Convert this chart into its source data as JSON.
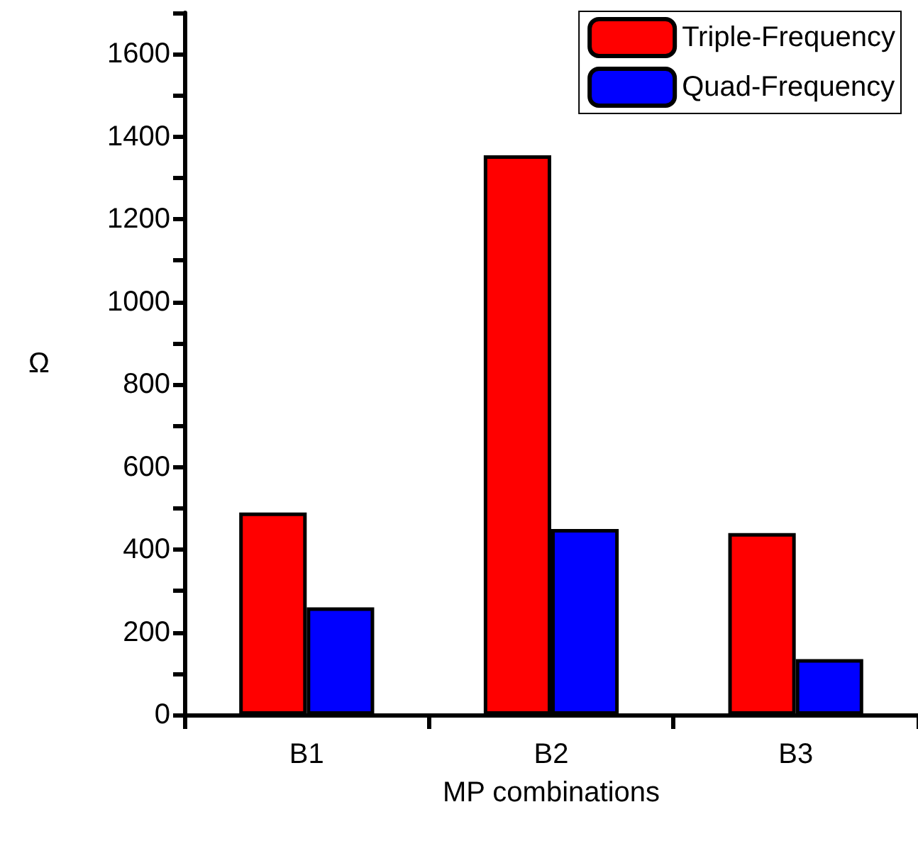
{
  "chart_data": {
    "type": "bar",
    "xlabel": "MP combinations",
    "ylabel": "Ω",
    "categories": [
      "B1",
      "B2",
      "B3"
    ],
    "series": [
      {
        "name": "Triple-Frequency",
        "color": "#ff0000",
        "values": [
          490,
          1355,
          440
        ]
      },
      {
        "name": "Quad-Frequency",
        "color": "#0000ff",
        "values": [
          260,
          450,
          135
        ]
      }
    ],
    "ylim": [
      0,
      1700
    ],
    "yticks": [
      0,
      {
        "value": 100,
        "label": null
      },
      200,
      {
        "value": 300,
        "label": null
      },
      400,
      {
        "value": 500,
        "label": null
      },
      600,
      {
        "value": 700,
        "label": null
      },
      800,
      {
        "value": 900,
        "label": null
      },
      1000,
      {
        "value": 1100,
        "label": null
      },
      1200,
      {
        "value": 1300,
        "label": null
      },
      1400,
      {
        "value": 1500,
        "label": null
      },
      1600,
      {
        "value": 1700,
        "label": null
      }
    ],
    "grid": false,
    "legend": "top right"
  }
}
